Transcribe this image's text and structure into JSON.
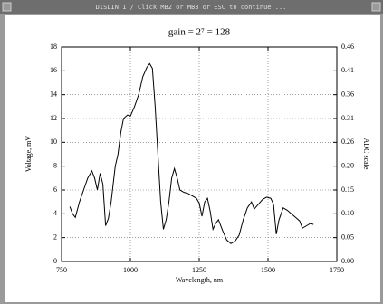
{
  "window": {
    "title": "DISLIN 1 / Click MB2 or MB3 or ESC to continue ..."
  },
  "chart_data": {
    "type": "line",
    "title": "gain = 2⁷ = 128",
    "xlabel": "Wavelength, nm",
    "ylabel": "Voltage, mV",
    "y2label": "ADC scale",
    "xlim": [
      750,
      1750
    ],
    "xticks": [
      750,
      1000,
      1250,
      1500,
      1750
    ],
    "ylim": [
      0,
      18
    ],
    "yticks": [
      0,
      2,
      4,
      6,
      8,
      10,
      12,
      14,
      16,
      18
    ],
    "y2lim": [
      0,
      0.4608
    ],
    "y2ticks": [
      {
        "value": 0,
        "label": "0.00"
      },
      {
        "value": 0.0512,
        "label": "0.05"
      },
      {
        "value": 0.1024,
        "label": "0.10"
      },
      {
        "value": 0.1536,
        "label": "0.15"
      },
      {
        "value": 0.2048,
        "label": "0.20"
      },
      {
        "value": 0.256,
        "label": "0.26"
      },
      {
        "value": 0.3072,
        "label": "0.31"
      },
      {
        "value": 0.3584,
        "label": "0.36"
      },
      {
        "value": 0.4096,
        "label": "0.41"
      },
      {
        "value": 0.4608,
        "label": "0.46"
      }
    ],
    "grid": true,
    "series": [
      {
        "color": "#000000",
        "x": [
          780,
          790,
          800,
          815,
          830,
          845,
          860,
          870,
          880,
          890,
          900,
          910,
          920,
          930,
          945,
          955,
          965,
          975,
          990,
          1000,
          1015,
          1030,
          1045,
          1060,
          1070,
          1080,
          1090,
          1100,
          1110,
          1120,
          1130,
          1140,
          1150,
          1160,
          1170,
          1180,
          1195,
          1210,
          1225,
          1240,
          1250,
          1260,
          1270,
          1280,
          1290,
          1300,
          1310,
          1320,
          1335,
          1350,
          1365,
          1380,
          1395,
          1410,
          1425,
          1440,
          1450,
          1465,
          1480,
          1495,
          1510,
          1520,
          1530,
          1540,
          1555,
          1570,
          1585,
          1600,
          1615,
          1625,
          1640,
          1655,
          1665
        ],
        "values": [
          4.6,
          4.0,
          3.7,
          5.0,
          6.0,
          7.0,
          7.6,
          7.0,
          6.0,
          7.4,
          6.5,
          3.0,
          3.6,
          5.0,
          8.0,
          9.0,
          10.8,
          12.0,
          12.3,
          12.2,
          13.0,
          14.0,
          15.5,
          16.3,
          16.6,
          16.2,
          13.0,
          9.0,
          5.0,
          2.7,
          3.5,
          5.0,
          7.0,
          7.8,
          7.0,
          6.0,
          5.8,
          5.7,
          5.5,
          5.3,
          4.9,
          3.8,
          5.0,
          5.3,
          4.2,
          2.7,
          3.2,
          3.5,
          2.6,
          1.8,
          1.5,
          1.7,
          2.2,
          3.5,
          4.5,
          5.0,
          4.4,
          4.8,
          5.2,
          5.4,
          5.3,
          4.8,
          2.3,
          3.5,
          4.5,
          4.3,
          4.0,
          3.7,
          3.4,
          2.8,
          3.0,
          3.2,
          3.1
        ]
      }
    ]
  }
}
